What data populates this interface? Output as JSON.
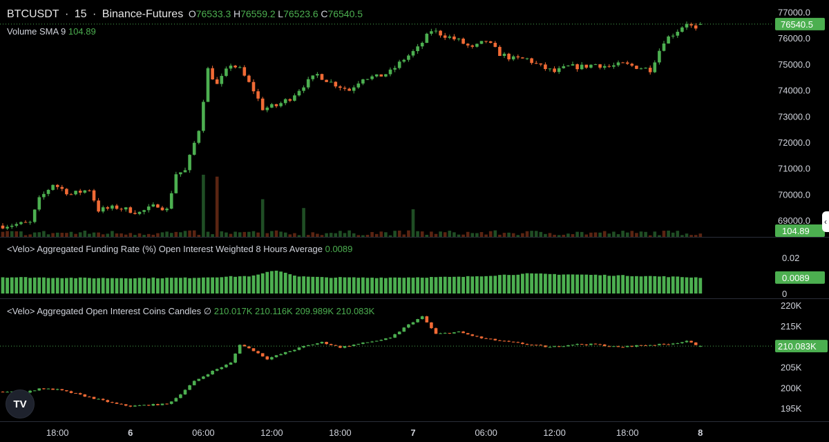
{
  "header": {
    "symbol": "BTCUSDT",
    "interval": "15",
    "exchange": "Binance-Futures",
    "o_label": "O",
    "o_value": "76533.3",
    "h_label": "H",
    "h_value": "76559.2",
    "l_label": "L",
    "l_value": "76523.6",
    "c_label": "C",
    "c_value": "76540.5",
    "sep": " · "
  },
  "volume_legend": {
    "name": "Volume SMA 9",
    "value": "104.89"
  },
  "funding_legend": {
    "name": "<Velo> Aggregated Funding Rate (%) Open Interest Weighted 8 Hours Average",
    "value": "0.0089"
  },
  "oi_legend": {
    "name": "<Velo> Aggregated Open Interest Coins Candles",
    "icon": "∅",
    "o": "210.017K",
    "h": "210.116K",
    "l": "209.989K",
    "c": "210.083K"
  },
  "colors": {
    "up": "#4caf50",
    "down": "#f06a35",
    "background": "#000000",
    "grid": "#2a2e39",
    "text": "#d1d4dc",
    "tag_bg": "#4caf50"
  },
  "icons": {
    "logo": "tradingview-logo-icon",
    "collapse": "chevron-left-icon"
  },
  "logo_text": "TV",
  "collapse_glyph": "‹",
  "chart_data": [
    {
      "type": "candlestick",
      "title": "BTCUSDT · 15 · Binance-Futures",
      "ylim": [
        68500,
        77200
      ],
      "y_ticks": [
        "77000.0",
        "76000.0",
        "75000.0",
        "74000.0",
        "73000.0",
        "72000.0",
        "71000.0",
        "70000.0",
        "69000.0"
      ],
      "last_price": "76540.5",
      "ohlc_last": {
        "open": 76533.3,
        "high": 76559.2,
        "low": 76523.6,
        "close": 76540.5
      },
      "close_path": [
        [
          0,
          68800
        ],
        [
          6,
          68900
        ],
        [
          8,
          69800
        ],
        [
          11,
          70400
        ],
        [
          15,
          70000
        ],
        [
          19,
          70200
        ],
        [
          21,
          69400
        ],
        [
          25,
          69500
        ],
        [
          30,
          69300
        ],
        [
          34,
          69600
        ],
        [
          36,
          69400
        ],
        [
          38,
          70800
        ],
        [
          40,
          70900
        ],
        [
          43,
          72500
        ],
        [
          45,
          74800
        ],
        [
          47,
          74200
        ],
        [
          50,
          75000
        ],
        [
          52,
          74800
        ],
        [
          55,
          74000
        ],
        [
          57,
          73300
        ],
        [
          60,
          73400
        ],
        [
          63,
          73700
        ],
        [
          66,
          74200
        ],
        [
          69,
          74600
        ],
        [
          72,
          74300
        ],
        [
          76,
          74000
        ],
        [
          79,
          74500
        ],
        [
          82,
          74500
        ],
        [
          85,
          74700
        ],
        [
          88,
          75200
        ],
        [
          91,
          75600
        ],
        [
          94,
          76300
        ],
        [
          97,
          76100
        ],
        [
          100,
          75900
        ],
        [
          103,
          75600
        ],
        [
          106,
          75900
        ],
        [
          109,
          75400
        ],
        [
          112,
          75200
        ],
        [
          115,
          75200
        ],
        [
          118,
          74900
        ],
        [
          121,
          74700
        ],
        [
          124,
          74900
        ],
        [
          127,
          74900
        ],
        [
          130,
          75000
        ],
        [
          133,
          74900
        ],
        [
          136,
          75000
        ],
        [
          139,
          74900
        ],
        [
          142,
          74800
        ],
        [
          145,
          75900
        ],
        [
          148,
          76300
        ],
        [
          150,
          76600
        ],
        [
          152,
          76300
        ],
        [
          153,
          76540.5
        ]
      ],
      "volume": {
        "series_name": "Volume SMA 9",
        "last_value": "104.89",
        "spikes": [
          [
            44,
            500
          ],
          [
            47,
            480
          ],
          [
            57,
            300
          ],
          [
            66,
            230
          ],
          [
            90,
            220
          ]
        ],
        "base": 40
      }
    },
    {
      "type": "bar",
      "title": "<Velo> Aggregated Funding Rate (%) Open Interest Weighted 8 Hours Average",
      "ylim": [
        0,
        0.025
      ],
      "y_ticks": [
        "0.02",
        "0"
      ],
      "last_value": "0.0089",
      "profile": [
        [
          0,
          0.0091
        ],
        [
          20,
          0.0086
        ],
        [
          40,
          0.0087
        ],
        [
          55,
          0.0098
        ],
        [
          60,
          0.013
        ],
        [
          65,
          0.0095
        ],
        [
          70,
          0.009
        ],
        [
          80,
          0.0088
        ],
        [
          100,
          0.0092
        ],
        [
          115,
          0.011
        ],
        [
          125,
          0.0106
        ],
        [
          140,
          0.0098
        ],
        [
          153,
          0.0089
        ]
      ]
    },
    {
      "type": "candlestick",
      "title": "<Velo> Aggregated Open Interest Coins Candles",
      "ylim": [
        192500,
        221000
      ],
      "y_ticks": [
        "220K",
        "215K",
        "210K",
        "205K",
        "200K",
        "195K"
      ],
      "last_value": "210.083K",
      "ohlc_last": {
        "open": 210017,
        "high": 210116,
        "low": 209989,
        "close": 210083
      },
      "close_path": [
        [
          0,
          199000
        ],
        [
          5,
          198800
        ],
        [
          8,
          199800
        ],
        [
          12,
          199500
        ],
        [
          16,
          198500
        ],
        [
          20,
          197400
        ],
        [
          25,
          196000
        ],
        [
          28,
          195500
        ],
        [
          32,
          195800
        ],
        [
          36,
          196000
        ],
        [
          38,
          197500
        ],
        [
          42,
          201500
        ],
        [
          46,
          204000
        ],
        [
          50,
          206000
        ],
        [
          52,
          210500
        ],
        [
          55,
          209000
        ],
        [
          58,
          207000
        ],
        [
          62,
          208500
        ],
        [
          66,
          210000
        ],
        [
          70,
          211000
        ],
        [
          74,
          209800
        ],
        [
          80,
          211000
        ],
        [
          85,
          212000
        ],
        [
          88,
          214500
        ],
        [
          90,
          216000
        ],
        [
          92,
          217200
        ],
        [
          95,
          213000
        ],
        [
          100,
          213500
        ],
        [
          105,
          212000
        ],
        [
          110,
          211200
        ],
        [
          115,
          210500
        ],
        [
          120,
          209800
        ],
        [
          125,
          210500
        ],
        [
          130,
          210500
        ],
        [
          135,
          209800
        ],
        [
          140,
          210300
        ],
        [
          145,
          210500
        ],
        [
          150,
          211200
        ],
        [
          153,
          210083
        ]
      ]
    }
  ],
  "x_axis": {
    "count": 154,
    "ticks": [
      {
        "label": "18:00",
        "i": 12
      },
      {
        "label": "6",
        "i": 28
      },
      {
        "label": "06:00",
        "i": 44
      },
      {
        "label": "12:00",
        "i": 59
      },
      {
        "label": "18:00",
        "i": 74
      },
      {
        "label": "7",
        "i": 90
      },
      {
        "label": "06:00",
        "i": 106
      },
      {
        "label": "12:00",
        "i": 121
      },
      {
        "label": "18:00",
        "i": 137
      },
      {
        "label": "8",
        "i": 153
      }
    ]
  }
}
